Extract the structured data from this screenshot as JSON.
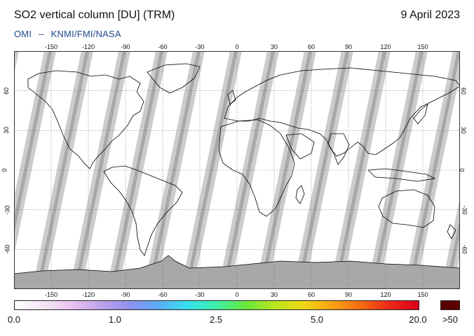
{
  "header": {
    "title": "SO2 vertical column [DU] (TRM)",
    "date": "9 April 2023",
    "instrument": "OMI",
    "separator": "–",
    "agencies": "KNMI/FMI/NASA"
  },
  "map": {
    "projection": "equirectangular",
    "lon_ticks": [
      -150,
      -120,
      -90,
      -60,
      -30,
      0,
      30,
      60,
      90,
      120,
      150
    ],
    "lat_ticks": [
      60,
      30,
      0,
      -30,
      -60
    ],
    "lon_labels": [
      "-150",
      "-120",
      "-90",
      "-60",
      "-30",
      "0",
      "30",
      "60",
      "90",
      "120",
      "150"
    ],
    "lat_labels": [
      "60",
      "30",
      "0",
      "-30",
      "-60"
    ],
    "colors": {
      "no_data": "#a8a8a8",
      "low_value": "#ffffff",
      "swath_edge": "#cccccc",
      "gridline": "#777777",
      "coastline": "#000000"
    }
  },
  "colorbar": {
    "labels": [
      "0.0",
      "1.0",
      "2.5",
      "5.0",
      "20.0",
      ">50"
    ],
    "stops": [
      "#ffffff",
      "#f3e6f4",
      "#e9c2ee",
      "#bfa3ea",
      "#8f8ff0",
      "#5aaef5",
      "#37e0ee",
      "#3ef0a6",
      "#67e83c",
      "#b8e61c",
      "#f0d810",
      "#f8a214",
      "#f46a12",
      "#f0281a",
      "#d8001a"
    ],
    "overflow_color": "#5a0000"
  }
}
